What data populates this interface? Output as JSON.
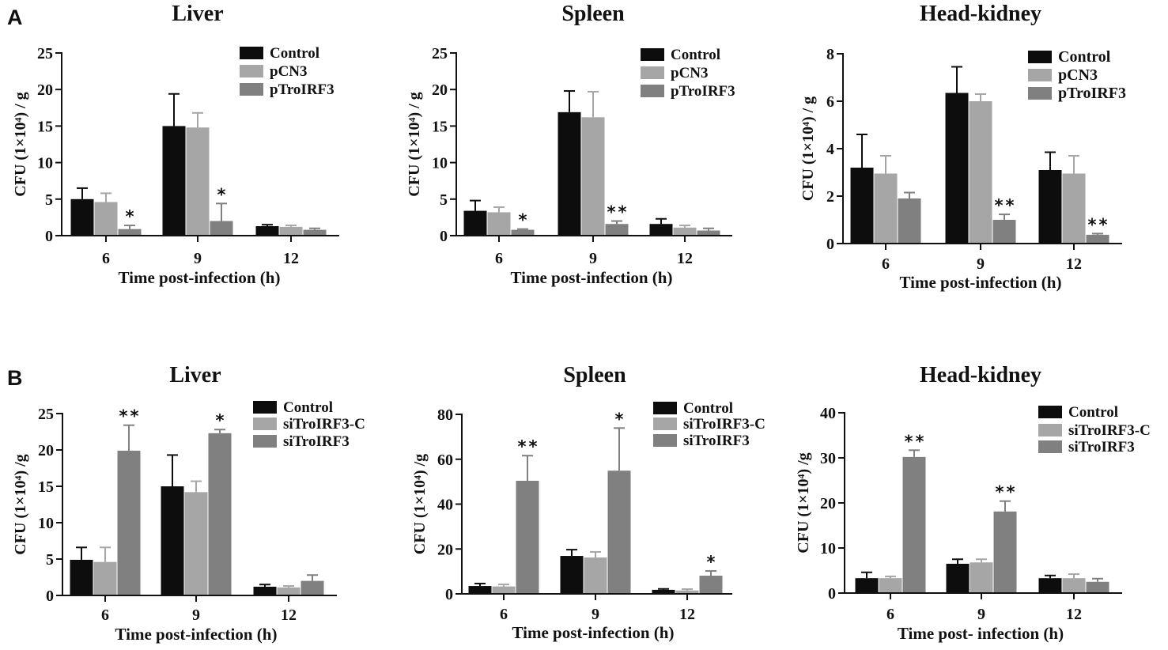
{
  "panel_labels": [
    "A",
    "B"
  ],
  "chart_data": [
    {
      "type": "bar",
      "title": "Liver",
      "xlabel": "Time post-infection (h)",
      "ylabel": "CFU (1×10⁴) / g",
      "ylim": [
        0,
        25
      ],
      "yticks": [
        0,
        5,
        10,
        15,
        20,
        25
      ],
      "categories": [
        "6",
        "9",
        "12"
      ],
      "series": [
        {
          "name": "Control",
          "color": "#0d0d0d",
          "values": [
            5.0,
            15.0,
            1.3
          ],
          "error": [
            1.5,
            4.4,
            0.2
          ]
        },
        {
          "name": "pCN3",
          "color": "#a6a6a6",
          "values": [
            4.6,
            14.8,
            1.2
          ],
          "error": [
            1.2,
            2.0,
            0.2
          ]
        },
        {
          "name": "pTroIRF3",
          "color": "#808080",
          "values": [
            0.9,
            2.0,
            0.8
          ],
          "error": [
            0.5,
            2.4,
            0.2
          ]
        }
      ],
      "significance": [
        {
          "category": 0,
          "series": 2,
          "label": "*"
        },
        {
          "category": 1,
          "series": 2,
          "label": "*"
        }
      ]
    },
    {
      "type": "bar",
      "title": "Spleen",
      "xlabel": "Time post-infection (h)",
      "ylabel": "CFU (1×10⁴) / g",
      "ylim": [
        0,
        25
      ],
      "yticks": [
        0,
        5,
        10,
        15,
        20,
        25
      ],
      "categories": [
        "6",
        "9",
        "12"
      ],
      "series": [
        {
          "name": "Control",
          "color": "#0d0d0d",
          "values": [
            3.4,
            16.9,
            1.6
          ],
          "error": [
            1.4,
            2.9,
            0.7
          ]
        },
        {
          "name": "pCN3",
          "color": "#a6a6a6",
          "values": [
            3.2,
            16.2,
            1.1
          ],
          "error": [
            0.7,
            3.5,
            0.3
          ]
        },
        {
          "name": "pTroIRF3",
          "color": "#808080",
          "values": [
            0.8,
            1.6,
            0.7
          ],
          "error": [
            0.1,
            0.4,
            0.3
          ]
        }
      ],
      "significance": [
        {
          "category": 0,
          "series": 2,
          "label": "*"
        },
        {
          "category": 1,
          "series": 2,
          "label": "**"
        }
      ]
    },
    {
      "type": "bar",
      "title": "Head-kidney",
      "xlabel": "Time post-infection (h)",
      "ylabel": "CFU (1×10⁴) / g",
      "ylim": [
        0,
        8
      ],
      "yticks": [
        0,
        2,
        4,
        6,
        8
      ],
      "categories": [
        "6",
        "9",
        "12"
      ],
      "series": [
        {
          "name": "Control",
          "color": "#0d0d0d",
          "values": [
            3.2,
            6.35,
            3.1
          ],
          "error": [
            1.4,
            1.1,
            0.75
          ]
        },
        {
          "name": "pCN3",
          "color": "#a6a6a6",
          "values": [
            2.95,
            6.0,
            2.95
          ],
          "error": [
            0.75,
            0.3,
            0.75
          ]
        },
        {
          "name": "pTroIRF3",
          "color": "#808080",
          "values": [
            1.9,
            1.0,
            0.37
          ],
          "error": [
            0.25,
            0.23,
            0.05
          ]
        }
      ],
      "significance": [
        {
          "category": 1,
          "series": 2,
          "label": "**"
        },
        {
          "category": 2,
          "series": 2,
          "label": "**"
        }
      ]
    },
    {
      "type": "bar",
      "title": "Liver",
      "xlabel": "Time post-infection (h)",
      "ylabel": "CFU (1×10⁴) /g",
      "ylim": [
        0,
        25
      ],
      "yticks": [
        0,
        5,
        10,
        15,
        20,
        25
      ],
      "categories": [
        "6",
        "9",
        "12"
      ],
      "series": [
        {
          "name": "Control",
          "color": "#0d0d0d",
          "values": [
            4.9,
            15.0,
            1.2
          ],
          "error": [
            1.7,
            4.3,
            0.3
          ]
        },
        {
          "name": "siTroIRF3-C",
          "color": "#a6a6a6",
          "values": [
            4.6,
            14.2,
            1.1
          ],
          "error": [
            2.0,
            1.5,
            0.2
          ]
        },
        {
          "name": "siTroIRF3",
          "color": "#808080",
          "values": [
            19.9,
            22.3,
            2.0
          ],
          "error": [
            3.5,
            0.5,
            0.8
          ]
        }
      ],
      "significance": [
        {
          "category": 0,
          "series": 2,
          "label": "**"
        },
        {
          "category": 1,
          "series": 2,
          "label": "*"
        }
      ]
    },
    {
      "type": "bar",
      "title": "Spleen",
      "xlabel": "Time post-infection (h)",
      "ylabel": "CFU (1×10⁴) /g",
      "ylim": [
        0,
        80
      ],
      "yticks": [
        0,
        20,
        40,
        60,
        80
      ],
      "categories": [
        "6",
        "9",
        "12"
      ],
      "series": [
        {
          "name": "Control",
          "color": "#0d0d0d",
          "values": [
            3.5,
            16.9,
            1.8
          ],
          "error": [
            1.1,
            2.8,
            0.4
          ]
        },
        {
          "name": "siTroIRF3-C",
          "color": "#a6a6a6",
          "values": [
            3.3,
            16.2,
            1.5
          ],
          "error": [
            0.9,
            2.5,
            0.6
          ]
        },
        {
          "name": "siTroIRF3",
          "color": "#808080",
          "values": [
            50.4,
            54.9,
            8.1
          ],
          "error": [
            11.2,
            19.0,
            2.1
          ]
        }
      ],
      "significance": [
        {
          "category": 0,
          "series": 2,
          "label": "**"
        },
        {
          "category": 1,
          "series": 2,
          "label": "*"
        },
        {
          "category": 2,
          "series": 2,
          "label": "*"
        }
      ]
    },
    {
      "type": "bar",
      "title": "Head-kidney",
      "xlabel": "Time post- infection (h)",
      "ylabel": "CFU (1×10⁴) /g",
      "ylim": [
        0,
        40
      ],
      "yticks": [
        0,
        10,
        20,
        30,
        40
      ],
      "categories": [
        "6",
        "9",
        "12"
      ],
      "series": [
        {
          "name": "Control",
          "color": "#0d0d0d",
          "values": [
            3.3,
            6.5,
            3.3
          ],
          "error": [
            1.3,
            1.0,
            0.6
          ]
        },
        {
          "name": "siTroIRF3-C",
          "color": "#a6a6a6",
          "values": [
            3.3,
            6.8,
            3.3
          ],
          "error": [
            0.4,
            0.7,
            0.9
          ]
        },
        {
          "name": "siTroIRF3",
          "color": "#808080",
          "values": [
            30.2,
            18.1,
            2.5
          ],
          "error": [
            1.5,
            2.3,
            0.7
          ]
        }
      ],
      "significance": [
        {
          "category": 0,
          "series": 2,
          "label": "**"
        },
        {
          "category": 1,
          "series": 2,
          "label": "**"
        }
      ]
    }
  ]
}
